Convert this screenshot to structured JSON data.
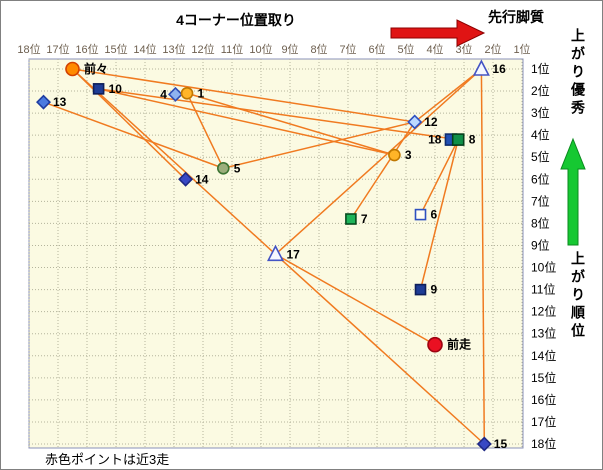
{
  "title": "4コーナー位置取り",
  "legend": {
    "pace_style_label": "先行脚質",
    "finish_excellent_label": "上がり優秀",
    "finish_rank_label": "上がり順位",
    "bottom_note": "赤色ポイントは近3走"
  },
  "colors": {
    "line": "#f07a20",
    "plot_bg": "#fbfae2",
    "plot_border": "#8890b8",
    "grid": "#b4b49c",
    "axis_top_text": "#6e6050",
    "axis_right_text": "#000000",
    "red_arrow": "#e01414",
    "red_arrow_border": "#8c0000",
    "green_arrow": "#16c832",
    "green_arrow_border": "#0a8a1e",
    "point_label": "#000000"
  },
  "chart_data": {
    "type": "scatter",
    "x_axis": {
      "labels": [
        "18位",
        "17位",
        "16位",
        "15位",
        "14位",
        "13位",
        "12位",
        "11位",
        "10位",
        "9位",
        "8位",
        "7位",
        "6位",
        "5位",
        "4位",
        "3位",
        "2位",
        "1位"
      ],
      "range": [
        18,
        1
      ]
    },
    "y_axis": {
      "labels": [
        "1位",
        "2位",
        "3位",
        "4位",
        "5位",
        "6位",
        "7位",
        "8位",
        "9位",
        "10位",
        "11位",
        "12位",
        "13位",
        "14位",
        "15位",
        "16位",
        "17位",
        "18位"
      ],
      "range": [
        1,
        18
      ]
    },
    "points": [
      {
        "label": "前々",
        "x": 16.5,
        "y": 1.0,
        "shape": "circle",
        "fill": "#ff8a00",
        "stroke": "#d34100",
        "size": 13
      },
      {
        "label": "10",
        "x": 15.6,
        "y": 1.9,
        "shape": "square",
        "fill": "#1e3c96",
        "stroke": "#0e1e5a",
        "size": 10
      },
      {
        "label": "13",
        "x": 17.5,
        "y": 2.5,
        "shape": "diamond",
        "fill": "#4a7ae0",
        "stroke": "#1e3ca0",
        "size": 9
      },
      {
        "label": "4",
        "x": 12.95,
        "y": 2.15,
        "shape": "diamond",
        "fill": "#8fb2f0",
        "stroke": "#2e4cb4",
        "size": 9,
        "label_side": "left"
      },
      {
        "label": "1",
        "x": 12.55,
        "y": 2.1,
        "shape": "circle",
        "fill": "#ffb428",
        "stroke": "#c07800",
        "size": 11
      },
      {
        "label": "12",
        "x": 4.7,
        "y": 3.4,
        "shape": "diamond",
        "fill": "#bcd8ff",
        "stroke": "#2e50c0",
        "size": 9
      },
      {
        "label": "16",
        "x": 2.4,
        "y": 1.0,
        "shape": "triangle",
        "fill": "#f6f8ff",
        "stroke": "#4454c4",
        "size": 12
      },
      {
        "label": "18",
        "x": 3.45,
        "y": 4.2,
        "shape": "square",
        "fill": "#2050b4",
        "stroke": "#0e2c6e",
        "size": 11,
        "label_side": "left"
      },
      {
        "label": "8",
        "x": 3.2,
        "y": 4.2,
        "shape": "square",
        "fill": "#0f9048",
        "stroke": "#05401c",
        "size": 11
      },
      {
        "label": "3",
        "x": 5.4,
        "y": 4.9,
        "shape": "circle",
        "fill": "#ffb428",
        "stroke": "#c07800",
        "size": 11
      },
      {
        "label": "5",
        "x": 11.3,
        "y": 5.5,
        "shape": "circle",
        "fill": "#9cae7c",
        "stroke": "#3c7432",
        "size": 11
      },
      {
        "label": "14",
        "x": 12.6,
        "y": 6.0,
        "shape": "diamond",
        "fill": "#3848c4",
        "stroke": "#1e2884",
        "size": 9
      },
      {
        "label": "7",
        "x": 6.9,
        "y": 7.8,
        "shape": "square",
        "fill": "#1eb45a",
        "stroke": "#064c1e",
        "size": 10
      },
      {
        "label": "6",
        "x": 4.5,
        "y": 7.6,
        "shape": "square",
        "fill": "#fffef2",
        "stroke": "#2e50c0",
        "size": 10
      },
      {
        "label": "17",
        "x": 9.5,
        "y": 9.4,
        "shape": "triangle",
        "fill": "#f6f8ff",
        "stroke": "#4454c4",
        "size": 12
      },
      {
        "label": "9",
        "x": 4.5,
        "y": 11.0,
        "shape": "square",
        "fill": "#1e3c96",
        "stroke": "#0e1e5a",
        "size": 10
      },
      {
        "label": "前走",
        "x": 4.0,
        "y": 13.5,
        "shape": "circle",
        "fill": "#ea1022",
        "stroke": "#9c0410",
        "size": 14
      },
      {
        "label": "15",
        "x": 2.3,
        "y": 18.0,
        "shape": "diamond",
        "fill": "#3848c4",
        "stroke": "#1e2884",
        "size": 9
      }
    ],
    "segments": [
      [
        "前々",
        "17"
      ],
      [
        "17",
        "15"
      ],
      [
        "16",
        "15"
      ],
      [
        "前々",
        "12"
      ],
      [
        "10",
        "8"
      ],
      [
        "10",
        "3"
      ],
      [
        "1",
        "3"
      ],
      [
        "1",
        "5"
      ],
      [
        "13",
        "5"
      ],
      [
        "5",
        "12"
      ],
      [
        "14",
        "前々"
      ],
      [
        "7",
        "12"
      ],
      [
        "6",
        "8"
      ],
      [
        "9",
        "8"
      ],
      [
        "前走",
        "17"
      ],
      [
        "12",
        "16"
      ],
      [
        "17",
        "16"
      ]
    ]
  }
}
